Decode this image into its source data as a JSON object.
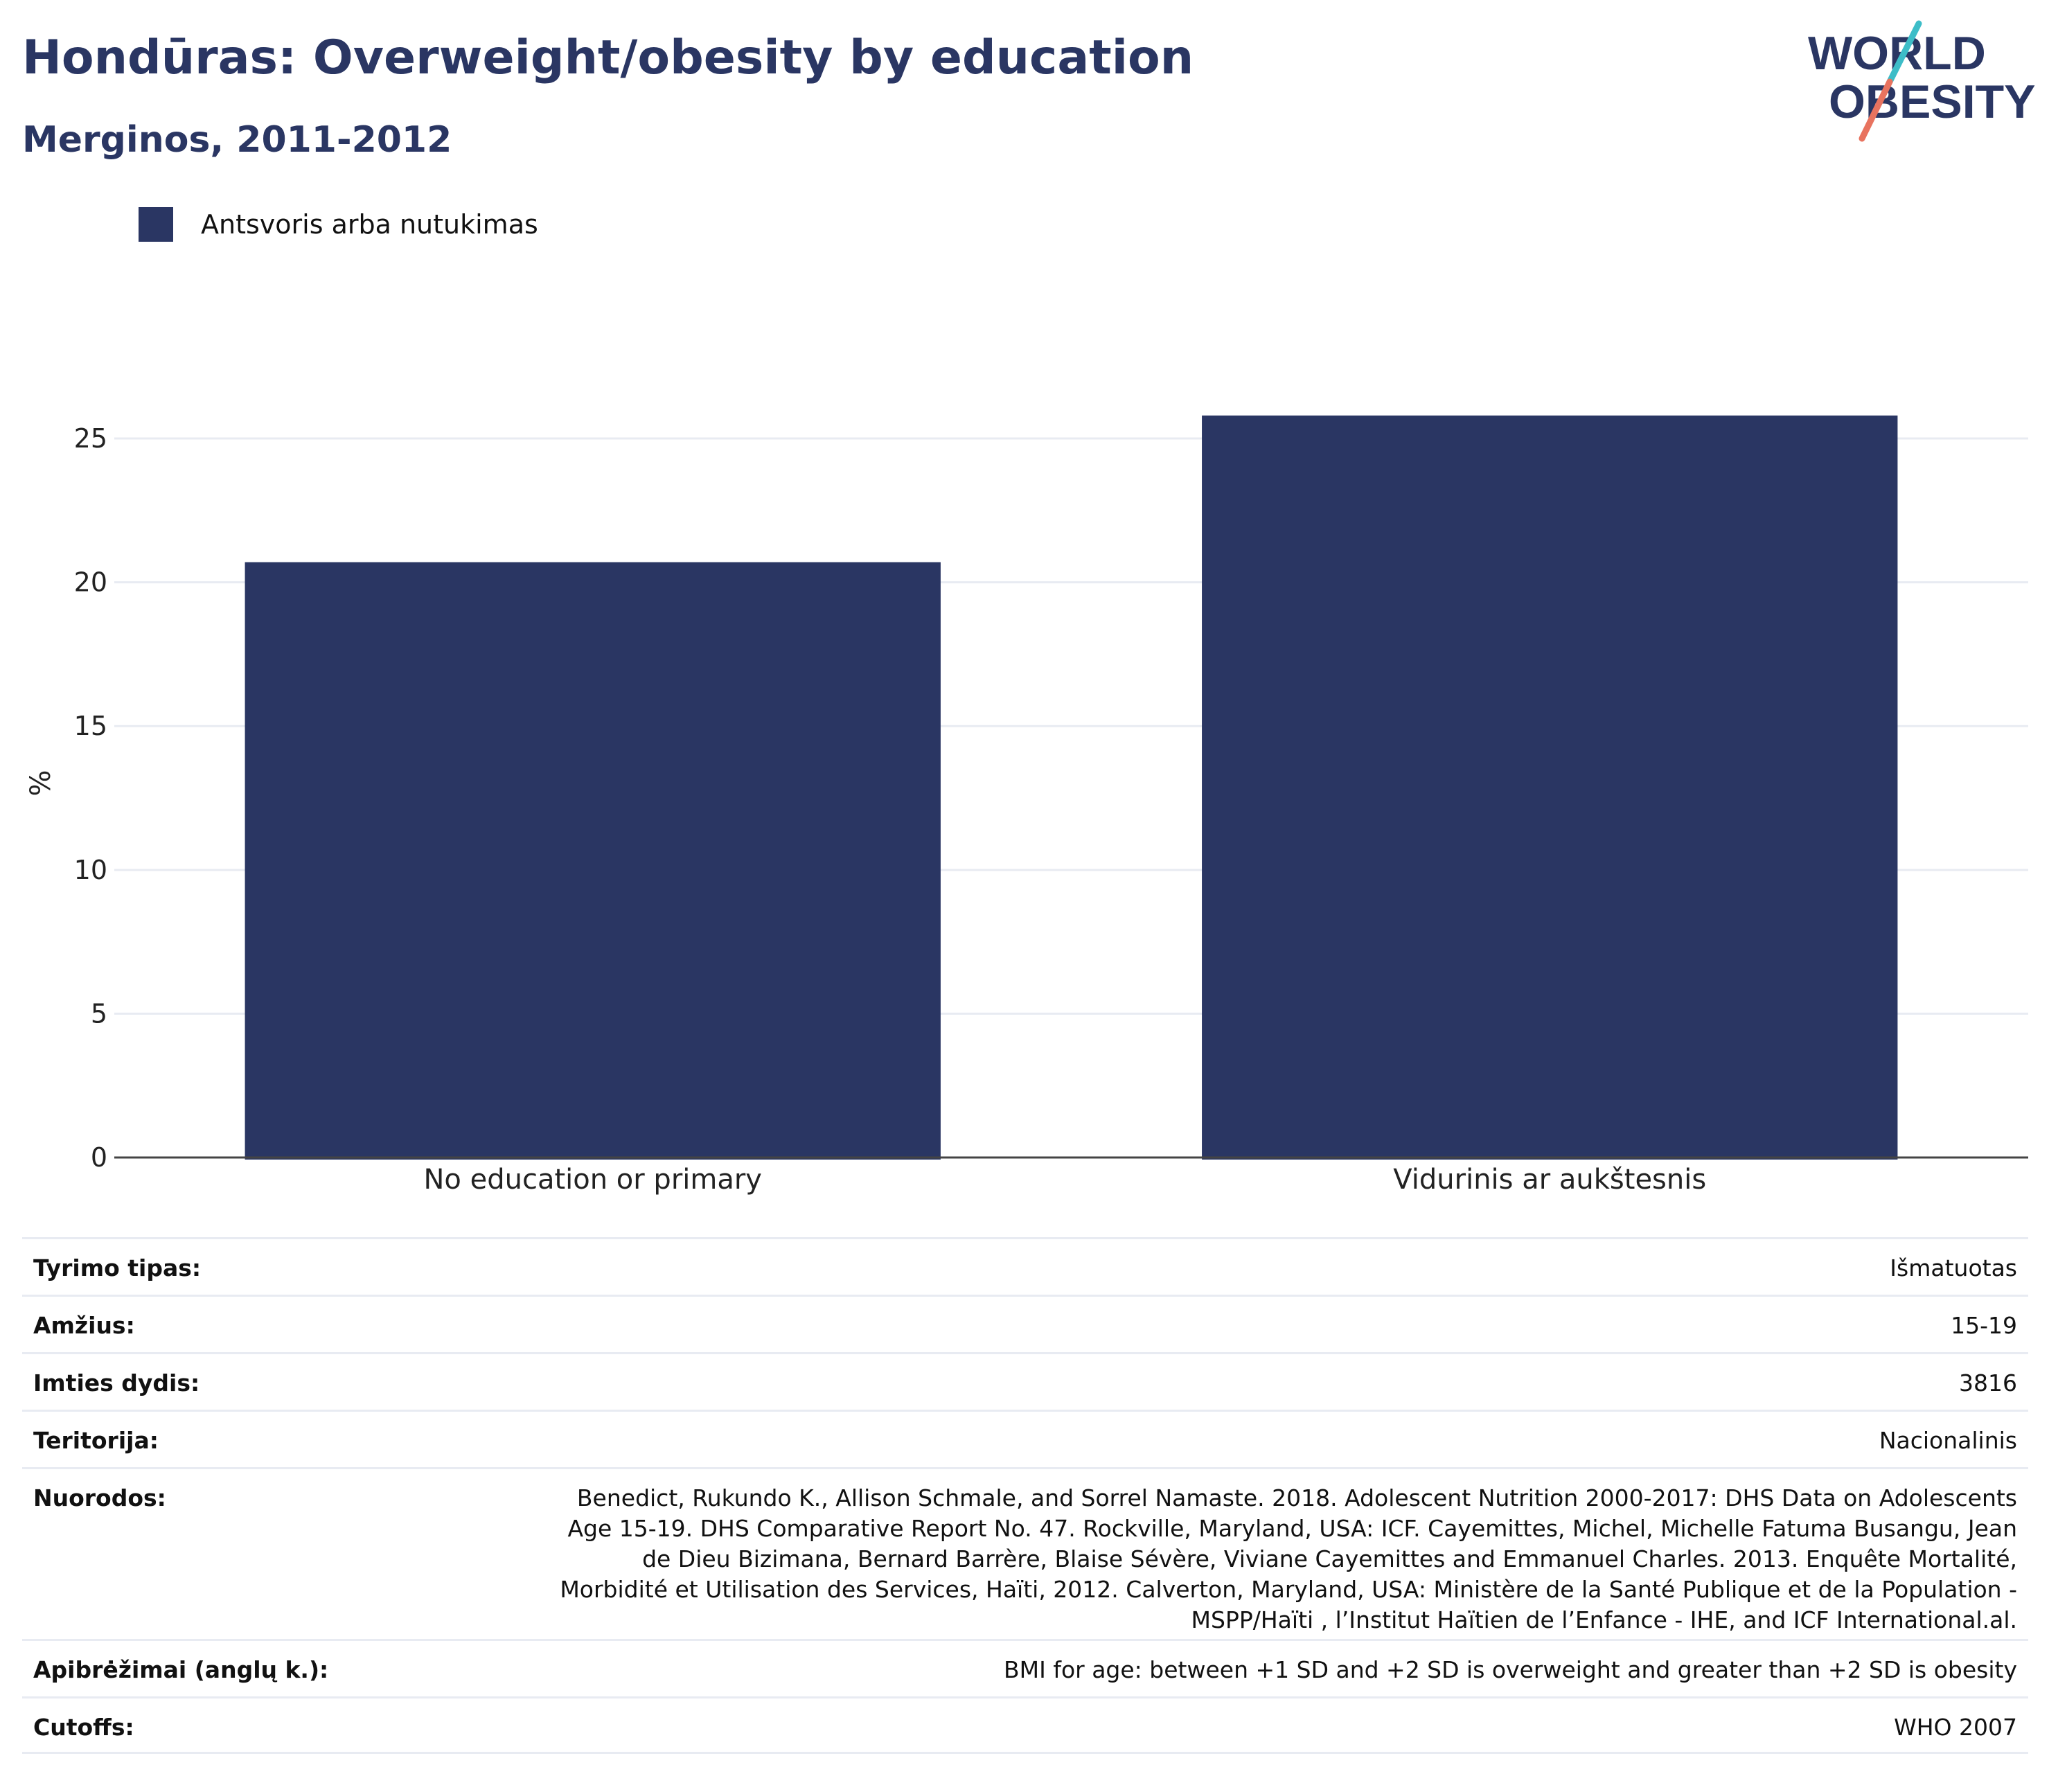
{
  "header": {
    "title": "Hondūras: Overweight/obesity by education",
    "subtitle": "Merginos, 2011-2012"
  },
  "logo": {
    "line1": "WORLD",
    "line2": "OBESITY"
  },
  "legend": {
    "label": "Antsvoris arba nutukimas"
  },
  "colors": {
    "bar": "#2a3663",
    "accent_teal": "#3dbdc8",
    "accent_coral": "#e8735f",
    "grid": "#e8ebf2"
  },
  "chart_data": {
    "type": "bar",
    "categories": [
      "No education or primary",
      "Vidurinis ar aukštesnis"
    ],
    "series": [
      {
        "name": "Antsvoris arba nutukimas",
        "values": [
          20.7,
          25.8
        ]
      }
    ],
    "ylabel": "%",
    "ylim": [
      0,
      27
    ],
    "yticks": [
      0,
      5,
      10,
      15,
      20,
      25
    ],
    "grid": true,
    "legend_position": "top-left"
  },
  "meta": [
    {
      "label": "Tyrimo tipas:",
      "value": "Išmatuotas"
    },
    {
      "label": "Amžius:",
      "value": "15-19"
    },
    {
      "label": "Imties dydis:",
      "value": "3816"
    },
    {
      "label": "Teritorija:",
      "value": "Nacionalinis"
    },
    {
      "label": "Nuorodos:",
      "value": "Benedict, Rukundo K., Allison Schmale, and Sorrel Namaste. 2018. Adolescent Nutrition 2000-2017: DHS Data on Adolescents Age 15-19. DHS Comparative Report No. 47. Rockville, Maryland, USA: ICF. Cayemittes, Michel, Michelle Fatuma Busangu, Jean de Dieu Bizimana, Bernard Barrère, Blaise Sévère, Viviane Cayemittes and Emmanuel Charles. 2013. Enquête Mortalité, Morbidité et Utilisation des Services, Haïti, 2012. Calverton, Maryland, USA: Ministère de la Santé Publique et de la Population - MSPP/Haïti , l’Institut Haïtien de l’Enfance - IHE, and ICF International.al."
    },
    {
      "label": "Apibrėžimai (anglų k.):",
      "value": "BMI for age: between +1 SD and +2 SD is overweight and greater than +2 SD is obesity"
    },
    {
      "label": "Cutoffs:",
      "value": "WHO 2007"
    }
  ]
}
